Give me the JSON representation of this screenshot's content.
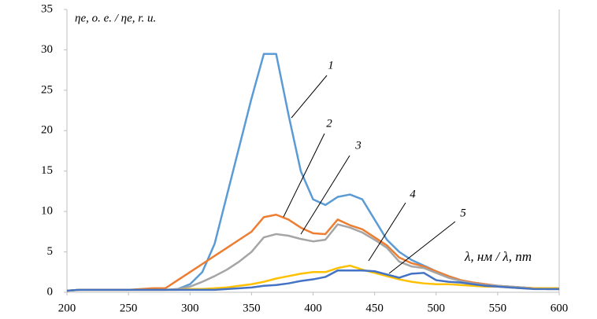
{
  "chart_data": {
    "type": "line",
    "ylabel": "ηe, о. е. / ηe, r. u.",
    "xlabel": "λ, нм / λ, nm",
    "x": [
      200,
      210,
      220,
      230,
      240,
      250,
      260,
      270,
      280,
      290,
      300,
      310,
      320,
      330,
      340,
      350,
      360,
      370,
      380,
      390,
      400,
      410,
      420,
      430,
      440,
      450,
      460,
      470,
      480,
      490,
      500,
      510,
      520,
      530,
      540,
      550,
      560,
      570,
      580,
      590,
      600
    ],
    "series": [
      {
        "name": "1",
        "color": "#5b9bd5",
        "values": [
          0.2,
          0.3,
          0.3,
          0.3,
          0.3,
          0.3,
          0.3,
          0.3,
          0.3,
          0.4,
          1.0,
          2.5,
          6,
          12,
          18,
          24,
          29.5,
          29.5,
          22,
          15,
          11.5,
          10.8,
          11.8,
          12.1,
          11.5,
          9,
          6.5,
          5,
          4,
          3.3,
          2.6,
          2,
          1.5,
          1.2,
          1,
          0.8,
          0.7,
          0.6,
          0.5,
          0.4,
          0.4
        ]
      },
      {
        "name": "2",
        "color": "#ed7d31",
        "values": [
          0.2,
          0.3,
          0.3,
          0.3,
          0.3,
          0.3,
          0.4,
          0.5,
          0.5,
          1.5,
          2.5,
          3.5,
          4.5,
          5.5,
          6.5,
          7.5,
          9.3,
          9.6,
          9,
          8,
          7.3,
          7.2,
          9,
          8.3,
          7.8,
          6.8,
          5.8,
          4.3,
          3.6,
          3.2,
          2.6,
          2,
          1.5,
          1.2,
          1,
          0.8,
          0.7,
          0.6,
          0.5,
          0.4,
          0.4
        ]
      },
      {
        "name": "3",
        "color": "#a5a5a5",
        "values": [
          0.2,
          0.3,
          0.3,
          0.3,
          0.3,
          0.3,
          0.3,
          0.3,
          0.3,
          0.4,
          0.7,
          1.3,
          2,
          2.8,
          3.8,
          5,
          6.8,
          7.2,
          7,
          6.6,
          6.3,
          6.5,
          8.4,
          8,
          7.4,
          6.5,
          5.5,
          3.8,
          3.2,
          3,
          2.4,
          1.8,
          1.4,
          1.1,
          0.9,
          0.8,
          0.7,
          0.6,
          0.5,
          0.5,
          0.5
        ]
      },
      {
        "name": "4",
        "color": "#ffc000",
        "values": [
          0.2,
          0.3,
          0.3,
          0.3,
          0.3,
          0.3,
          0.3,
          0.3,
          0.3,
          0.3,
          0.4,
          0.4,
          0.5,
          0.6,
          0.8,
          1,
          1.3,
          1.7,
          2,
          2.3,
          2.5,
          2.5,
          3,
          3.3,
          2.8,
          2.4,
          2,
          1.6,
          1.3,
          1.1,
          1,
          1,
          0.9,
          0.8,
          0.7,
          0.7,
          0.6,
          0.5,
          0.5,
          0.5,
          0.5
        ]
      },
      {
        "name": "5",
        "color": "#4472c4",
        "values": [
          0.2,
          0.3,
          0.3,
          0.3,
          0.3,
          0.3,
          0.3,
          0.3,
          0.3,
          0.3,
          0.3,
          0.3,
          0.3,
          0.4,
          0.5,
          0.6,
          0.8,
          0.9,
          1.1,
          1.4,
          1.6,
          1.9,
          2.7,
          2.7,
          2.7,
          2.6,
          2.2,
          1.8,
          2.3,
          2.4,
          1.5,
          1.3,
          1.2,
          1,
          0.8,
          0.7,
          0.6,
          0.5,
          0.4,
          0.4,
          0.4
        ]
      }
    ],
    "xlim": [
      200,
      600
    ],
    "xticks": [
      200,
      250,
      300,
      350,
      400,
      450,
      500,
      550,
      600
    ],
    "ylim": [
      0,
      35
    ],
    "yticks": [
      0,
      5,
      10,
      15,
      20,
      25,
      30,
      35
    ]
  }
}
